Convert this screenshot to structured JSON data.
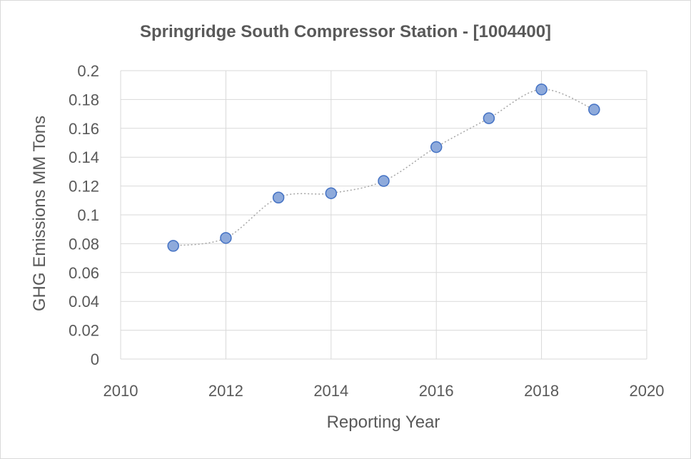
{
  "chart_data": {
    "type": "scatter",
    "title": "Springridge South Compressor Station - [1004400]",
    "xlabel": "Reporting Year",
    "ylabel": "GHG Emissions MM Tons",
    "xlim": [
      2010,
      2020
    ],
    "ylim": [
      0,
      0.2
    ],
    "x_ticks": [
      "2010",
      "2012",
      "2014",
      "2016",
      "2018",
      "2020"
    ],
    "y_ticks": [
      "0",
      "0.02",
      "0.04",
      "0.06",
      "0.08",
      "0.1",
      "0.12",
      "0.14",
      "0.16",
      "0.18",
      "0.2"
    ],
    "grid": true,
    "legend": "none",
    "line_style": "dotted smoothed",
    "colors": {
      "marker_fill": "#8eaadb",
      "marker_stroke": "#4472c4",
      "line": "#a6a6a6",
      "grid": "#d9d9d9"
    },
    "x": [
      2011,
      2012,
      2013,
      2014,
      2015,
      2016,
      2017,
      2018,
      2019
    ],
    "y": [
      0.0785,
      0.084,
      0.112,
      0.115,
      0.1235,
      0.147,
      0.167,
      0.187,
      0.173
    ]
  }
}
